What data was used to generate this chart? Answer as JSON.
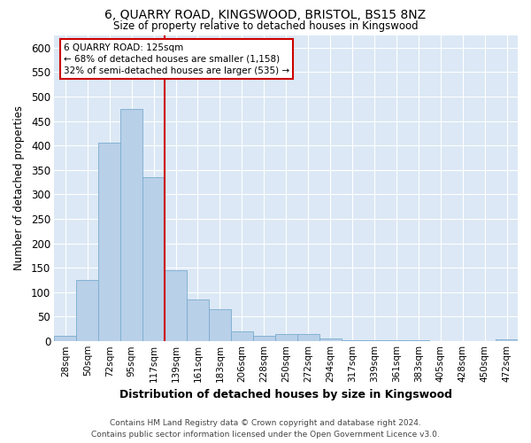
{
  "title": "6, QUARRY ROAD, KINGSWOOD, BRISTOL, BS15 8NZ",
  "subtitle": "Size of property relative to detached houses in Kingswood",
  "xlabel": "Distribution of detached houses by size in Kingswood",
  "ylabel": "Number of detached properties",
  "bar_color": "#b8d0e8",
  "bar_edge_color": "#7aacd0",
  "background_color": "#dce8f5",
  "categories": [
    "28sqm",
    "50sqm",
    "72sqm",
    "95sqm",
    "117sqm",
    "139sqm",
    "161sqm",
    "183sqm",
    "206sqm",
    "228sqm",
    "250sqm",
    "272sqm",
    "294sqm",
    "317sqm",
    "339sqm",
    "361sqm",
    "383sqm",
    "405sqm",
    "428sqm",
    "450sqm",
    "472sqm"
  ],
  "values": [
    10,
    125,
    405,
    475,
    335,
    145,
    85,
    65,
    20,
    10,
    15,
    15,
    5,
    2,
    2,
    1,
    1,
    0,
    0,
    0,
    3
  ],
  "ylim": [
    0,
    625
  ],
  "yticks": [
    0,
    50,
    100,
    150,
    200,
    250,
    300,
    350,
    400,
    450,
    500,
    550,
    600
  ],
  "vline_x_index": 4.5,
  "vline_color": "#cc0000",
  "annotation_title": "6 QUARRY ROAD: 125sqm",
  "annotation_line1": "← 68% of detached houses are smaller (1,158)",
  "annotation_line2": "32% of semi-detached houses are larger (535) →",
  "footer_line1": "Contains HM Land Registry data © Crown copyright and database right 2024.",
  "footer_line2": "Contains public sector information licensed under the Open Government Licence v3.0."
}
